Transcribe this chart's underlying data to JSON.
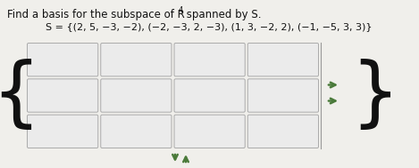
{
  "title_line1": "Find a basis for the subspace of R",
  "title_sup": "4",
  "title_line1_end": " spanned by S.",
  "set_label": "S = {(2, 5, −3, −2), (−2, −3, 2, −3), (1, 3, −2, 2), (−1, −5, 3, 3)}",
  "nrows": 3,
  "ncols": 4,
  "bg_color": "#f0efeb",
  "box_fill": "#ebebeb",
  "box_edge": "#aaaaaa",
  "brace_color": "#111111",
  "arrow_color_green": "#4a7a3a",
  "text_color": "#111111",
  "figw": 4.69,
  "figh": 1.89,
  "dpi": 100
}
